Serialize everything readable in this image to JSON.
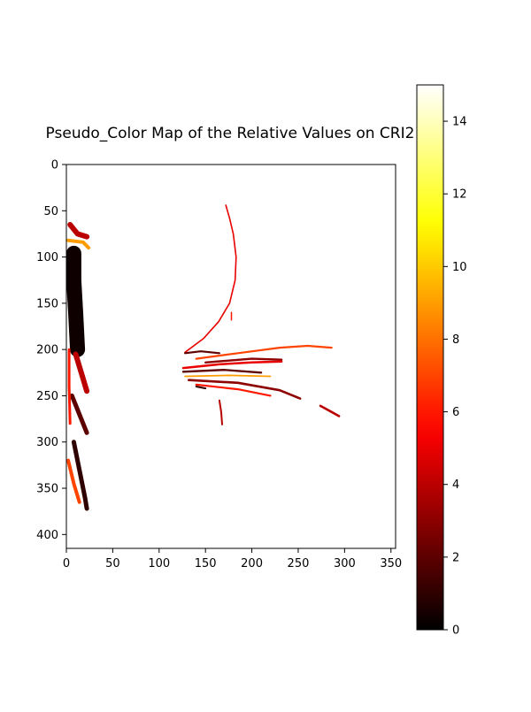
{
  "chart_data": {
    "type": "heatmap",
    "title": "Pseudo_Color Map of the Relative Values on CRI2",
    "xlabel": "",
    "ylabel": "",
    "xlim": [
      0,
      355
    ],
    "ylim": [
      415,
      0
    ],
    "x_ticks": [
      0,
      50,
      100,
      150,
      200,
      250,
      300,
      350
    ],
    "y_ticks": [
      0,
      50,
      100,
      150,
      200,
      250,
      300,
      350,
      400
    ],
    "grid": false,
    "colormap": "hot",
    "colorbar": {
      "min": 0,
      "max": 15,
      "ticks": [
        0,
        2,
        4,
        6,
        8,
        10,
        12,
        14
      ]
    },
    "background": "#ffffff",
    "features": [
      {
        "label": "arc-upper",
        "points": [
          [
            172,
            44
          ],
          [
            176,
            58
          ],
          [
            180,
            75
          ],
          [
            183,
            100
          ],
          [
            182,
            125
          ],
          [
            176,
            150
          ],
          [
            164,
            170
          ],
          [
            148,
            188
          ],
          [
            128,
            203
          ]
        ],
        "value": 5,
        "width": 1.6
      },
      {
        "label": "arc-upper-dot",
        "points": [
          [
            178,
            160
          ],
          [
            178,
            168
          ]
        ],
        "value": 6,
        "width": 1.5
      },
      {
        "label": "streak-top-1",
        "points": [
          [
            128,
            204
          ],
          [
            145,
            202
          ],
          [
            165,
            204
          ]
        ],
        "value": 2,
        "width": 2.2
      },
      {
        "label": "streak-top-2",
        "points": [
          [
            140,
            210
          ],
          [
            185,
            204
          ],
          [
            230,
            198
          ],
          [
            260,
            196
          ],
          [
            286,
            198
          ]
        ],
        "value": 7,
        "width": 2.2
      },
      {
        "label": "streak-top-3",
        "points": [
          [
            150,
            214
          ],
          [
            200,
            210
          ],
          [
            232,
            211
          ]
        ],
        "value": 3,
        "width": 2.4
      },
      {
        "label": "streak-mid-1",
        "points": [
          [
            126,
            220
          ],
          [
            165,
            216
          ],
          [
            200,
            214
          ],
          [
            232,
            213
          ]
        ],
        "value": 5,
        "width": 2.5
      },
      {
        "label": "streak-mid-2",
        "points": [
          [
            126,
            224
          ],
          [
            170,
            222
          ],
          [
            210,
            225
          ]
        ],
        "value": 2,
        "width": 2.3
      },
      {
        "label": "streak-mid-3",
        "points": [
          [
            128,
            229
          ],
          [
            175,
            228
          ],
          [
            220,
            229
          ]
        ],
        "value": 9,
        "width": 1.8
      },
      {
        "label": "streak-low-1",
        "points": [
          [
            132,
            233
          ],
          [
            185,
            236
          ],
          [
            230,
            244
          ],
          [
            252,
            253
          ]
        ],
        "value": 3,
        "width": 2.6
      },
      {
        "label": "streak-low-2",
        "points": [
          [
            140,
            238
          ],
          [
            185,
            243
          ],
          [
            220,
            250
          ]
        ],
        "value": 6,
        "width": 2.2
      },
      {
        "label": "streak-low-3",
        "points": [
          [
            140,
            240
          ],
          [
            150,
            242
          ]
        ],
        "value": 1,
        "width": 2
      },
      {
        "label": "tail-right",
        "points": [
          [
            274,
            261
          ],
          [
            285,
            267
          ],
          [
            294,
            272
          ]
        ],
        "value": 4,
        "width": 2.6
      },
      {
        "label": "tail-down",
        "points": [
          [
            165,
            255
          ],
          [
            167,
            268
          ],
          [
            168,
            281
          ]
        ],
        "value": 4,
        "width": 2
      },
      {
        "label": "edge-block-1",
        "points": [
          [
            8,
            96
          ],
          [
            8,
            125
          ],
          [
            10,
            160
          ],
          [
            12,
            200
          ]
        ],
        "value": 0.3,
        "width": 17
      },
      {
        "label": "edge-block-2",
        "points": [
          [
            4,
            65
          ],
          [
            12,
            75
          ],
          [
            22,
            78
          ]
        ],
        "value": 4,
        "width": 6
      },
      {
        "label": "edge-block-3",
        "points": [
          [
            2,
            82
          ],
          [
            18,
            84
          ],
          [
            24,
            90
          ]
        ],
        "value": 9,
        "width": 4
      },
      {
        "label": "edge-block-4",
        "points": [
          [
            10,
            205
          ],
          [
            16,
            225
          ],
          [
            22,
            245
          ]
        ],
        "value": 4,
        "width": 6
      },
      {
        "label": "edge-block-5",
        "points": [
          [
            6,
            250
          ],
          [
            14,
            270
          ],
          [
            22,
            290
          ]
        ],
        "value": 2,
        "width": 5
      },
      {
        "label": "edge-block-6",
        "points": [
          [
            8,
            300
          ],
          [
            14,
            330
          ],
          [
            20,
            360
          ],
          [
            22,
            372
          ]
        ],
        "value": 1,
        "width": 5
      },
      {
        "label": "edge-block-7",
        "points": [
          [
            2,
            320
          ],
          [
            8,
            345
          ],
          [
            14,
            365
          ]
        ],
        "value": 7,
        "width": 4
      },
      {
        "label": "edge-block-8",
        "points": [
          [
            3,
            200
          ],
          [
            3,
            240
          ],
          [
            4,
            280
          ]
        ],
        "value": 6,
        "width": 3
      }
    ]
  }
}
